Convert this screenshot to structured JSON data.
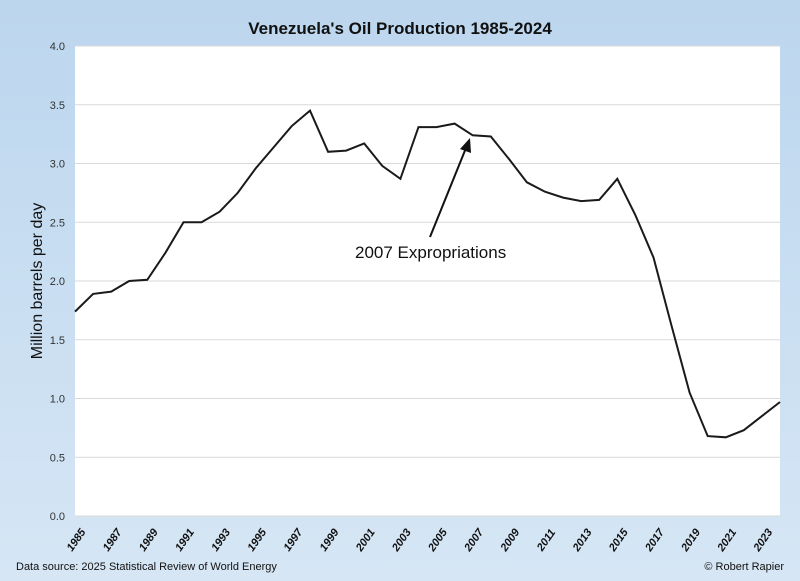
{
  "chart_data": {
    "type": "line",
    "title": "Venezuela's Oil Production 1985-2024",
    "ylabel": "Million barrels per day",
    "xlabel": "",
    "ylim": [
      0,
      4.0
    ],
    "yticks": [
      "0.0",
      "0.5",
      "1.0",
      "1.5",
      "2.0",
      "2.5",
      "3.0",
      "3.5",
      "4.0"
    ],
    "xticks": [
      "1985",
      "1987",
      "1989",
      "1991",
      "1993",
      "1995",
      "1997",
      "1999",
      "2001",
      "2003",
      "2005",
      "2007",
      "2009",
      "2011",
      "2013",
      "2015",
      "2017",
      "2019",
      "2021",
      "2023"
    ],
    "grid": true,
    "x": [
      1985,
      1986,
      1987,
      1988,
      1989,
      1990,
      1991,
      1992,
      1993,
      1994,
      1995,
      1996,
      1997,
      1998,
      1999,
      2000,
      2001,
      2002,
      2003,
      2004,
      2005,
      2006,
      2007,
      2008,
      2009,
      2010,
      2011,
      2012,
      2013,
      2014,
      2015,
      2016,
      2017,
      2018,
      2019,
      2020,
      2021,
      2022,
      2023,
      2024
    ],
    "values": [
      1.74,
      1.89,
      1.91,
      2.0,
      2.01,
      2.24,
      2.5,
      2.5,
      2.59,
      2.75,
      2.96,
      3.14,
      3.32,
      3.45,
      3.1,
      3.11,
      3.17,
      2.98,
      2.87,
      3.31,
      3.31,
      3.34,
      3.24,
      3.23,
      3.04,
      2.84,
      2.76,
      2.71,
      2.68,
      2.69,
      2.87,
      2.56,
      2.2,
      1.62,
      1.05,
      0.68,
      0.67,
      0.73,
      0.85,
      0.97
    ],
    "line_color": "#1a1a1a",
    "annotation": {
      "text": "2007 Expropriations",
      "points_to_year": 2007
    }
  },
  "footer": {
    "source": "Data source: 2025 Statistical Review of World Energy",
    "credit": "© Robert Rapier"
  }
}
